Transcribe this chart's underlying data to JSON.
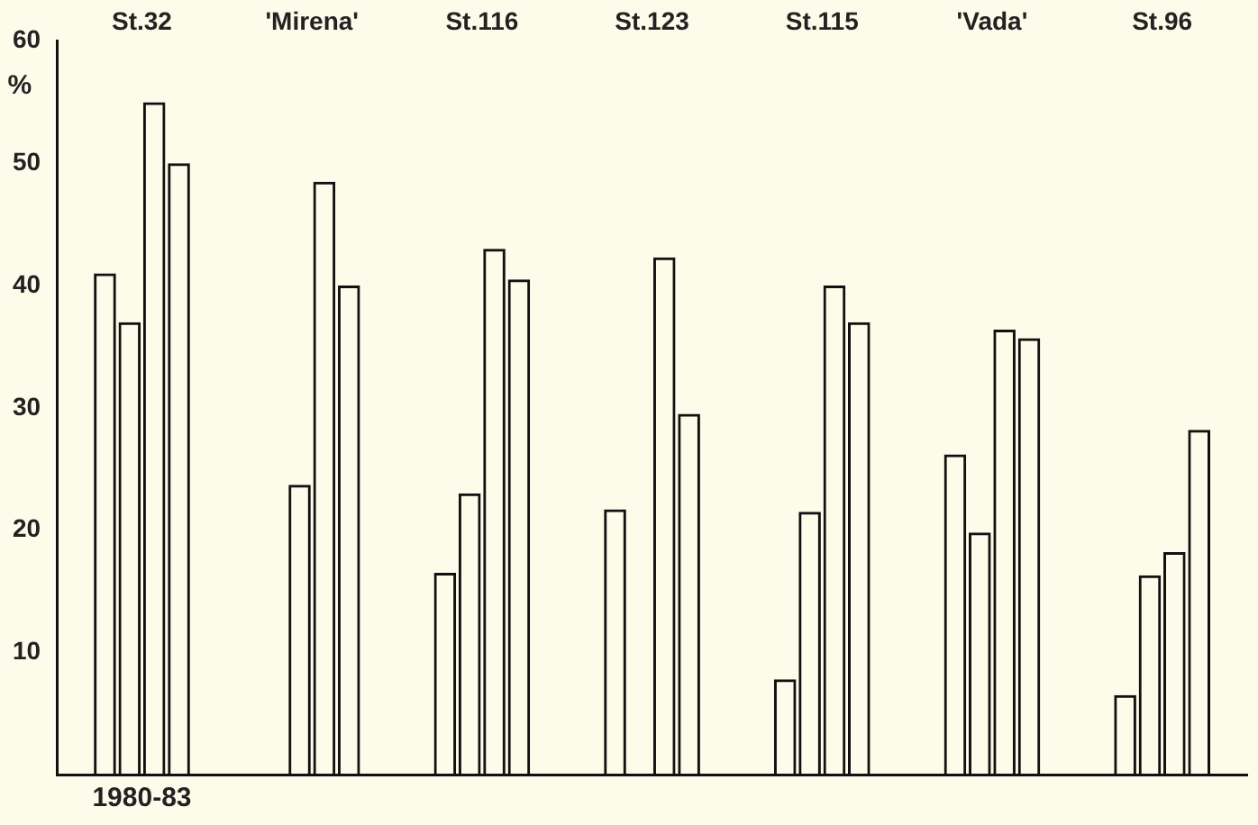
{
  "chart_data": {
    "type": "bar",
    "ylabel": "%",
    "categories": [
      "St.32",
      "'Mirena'",
      "St.116",
      "St.123",
      "St.115",
      "'Vada'",
      "St.96"
    ],
    "series": [
      {
        "color": "#111111",
        "values": [
          41,
          null,
          16.5,
          21.7,
          7.8,
          26.2,
          6.5
        ]
      },
      {
        "color": "#111111",
        "values": [
          37,
          23.7,
          23,
          null,
          21.5,
          19.8,
          16.3
        ]
      },
      {
        "color": "#111111",
        "values": [
          55,
          48.5,
          43,
          42.3,
          40,
          36.4,
          18.2
        ]
      },
      {
        "color": "#111111",
        "values": [
          50,
          40,
          40.5,
          29.5,
          37,
          35.7,
          28.2
        ]
      }
    ],
    "ylim": [
      0,
      60
    ],
    "yticks": [
      10,
      20,
      30,
      40,
      50,
      60
    ],
    "grid": false,
    "legend": false,
    "annotations": [
      "1980-83"
    ]
  }
}
